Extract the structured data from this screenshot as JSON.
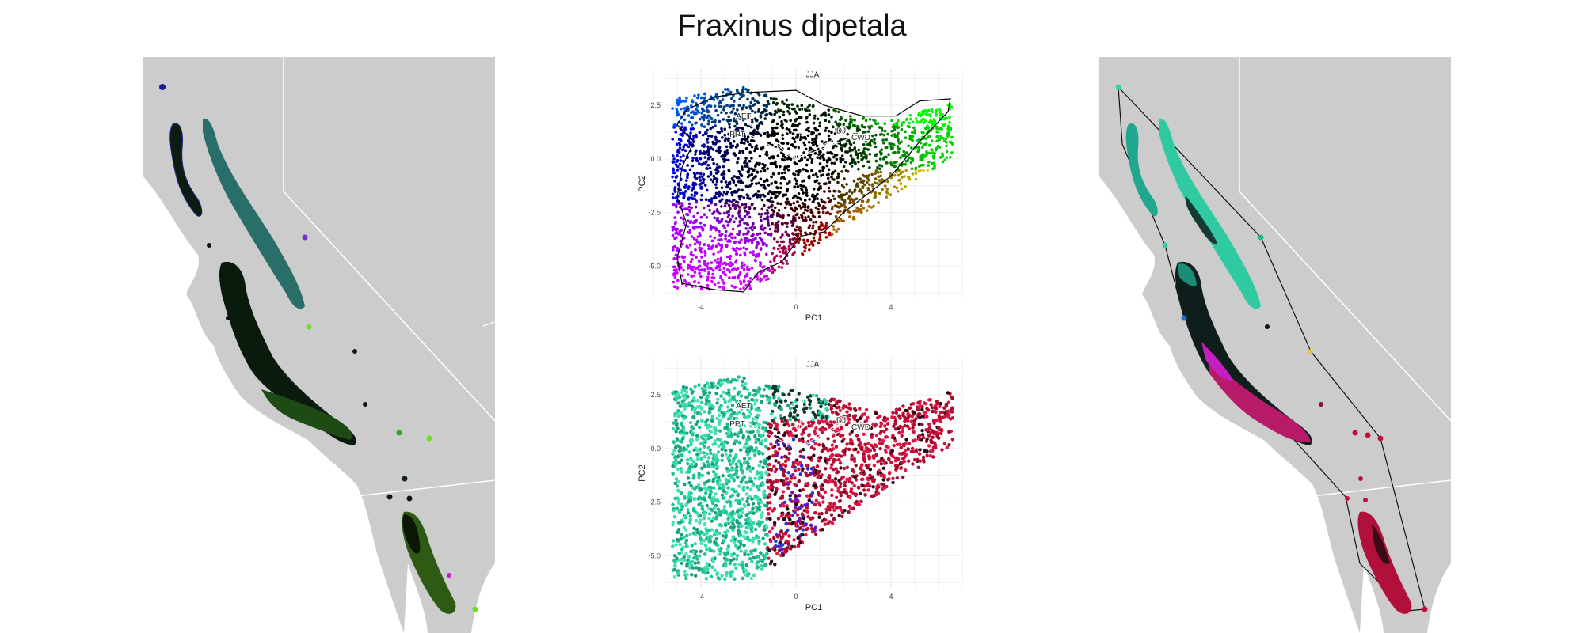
{
  "title": "Fraxinus dipetala",
  "chart_data": [
    {
      "type": "scatter",
      "xlabel": "PC1",
      "ylabel": "PC2",
      "xlim": [
        -5.5,
        7.0
      ],
      "ylim": [
        -6.5,
        4.2
      ],
      "x_ticks": [
        -4,
        0,
        4
      ],
      "y_ticks": [
        2.5,
        0.0,
        -2.5,
        -5.0
      ],
      "tick_labels_x": [
        "-4",
        "0",
        "4"
      ],
      "tick_labels_y": [
        "2.5",
        "0.0",
        "-2.5",
        "-5.0"
      ],
      "grid": true,
      "hull_outline": true,
      "vectors": [
        {
          "label": "JJA",
          "x": 0.5,
          "y": 3.6
        },
        {
          "label": "AET",
          "x": -2.2,
          "y": 1.8
        },
        {
          "label": "PPT",
          "x": -2.4,
          "y": 1.4
        },
        {
          "label": "DJ",
          "x": 2.1,
          "y": 1.2
        },
        {
          "label": "CWD",
          "x": 2.6,
          "y": 1.1
        }
      ],
      "color_scheme": "rgb-climate"
    },
    {
      "type": "scatter",
      "xlabel": "PC1",
      "ylabel": "PC2",
      "xlim": [
        -5.5,
        7.0
      ],
      "ylim": [
        -6.5,
        4.2
      ],
      "x_ticks": [
        -4,
        0,
        4
      ],
      "y_ticks": [
        2.5,
        0.0,
        -2.5,
        -5.0
      ],
      "tick_labels_x": [
        "-4",
        "0",
        "4"
      ],
      "tick_labels_y": [
        "2.5",
        "0.0",
        "-2.5",
        "-5.0"
      ],
      "grid": true,
      "hull_outline": false,
      "vectors": [
        {
          "label": "JJA",
          "x": 0.5,
          "y": 3.6
        },
        {
          "label": "AET",
          "x": -2.2,
          "y": 1.8
        },
        {
          "label": "PPT",
          "x": -2.4,
          "y": 1.4
        },
        {
          "label": "DJ",
          "x": 2.1,
          "y": 1.2
        },
        {
          "label": "CWD",
          "x": 2.6,
          "y": 1.1
        }
      ],
      "color_scheme": "cluster"
    }
  ],
  "colors": {
    "land": "#cccccc",
    "ocean": "#ffffff",
    "border": "#ffffff",
    "teal": "#2fd6a8",
    "crimson": "#d0103a",
    "magenta": "#c01ec8",
    "lime": "#6be11f"
  }
}
